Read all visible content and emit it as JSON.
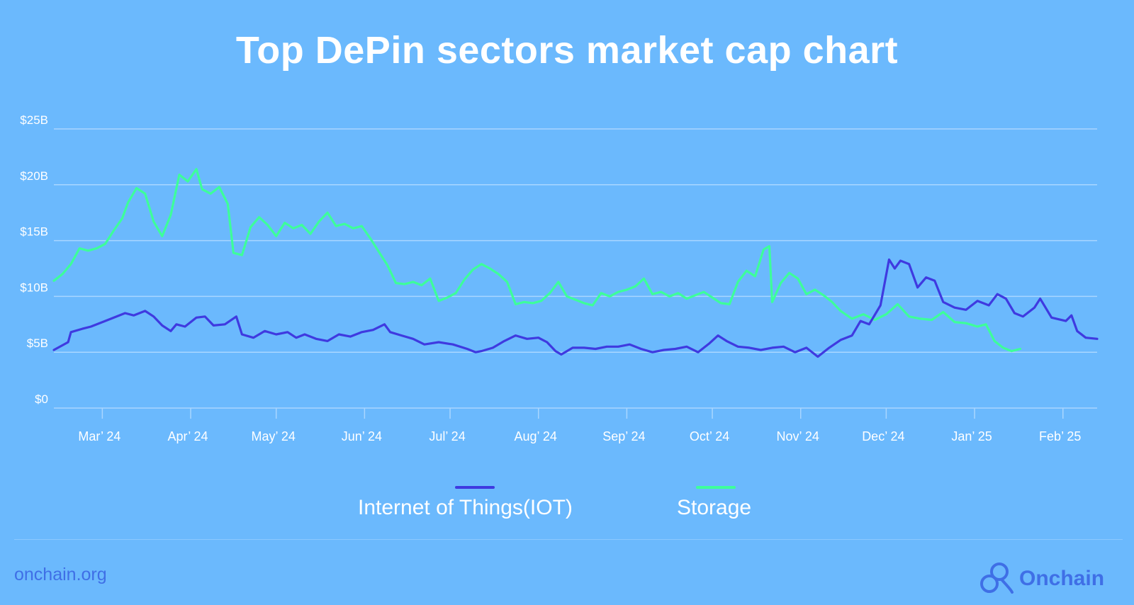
{
  "title": "Top DePin sectors market cap chart",
  "footer": {
    "site": "onchain.org",
    "brand": "Onchain",
    "brand_icon": "onchain-logo-icon"
  },
  "colors": {
    "background": "#6bb9fd",
    "grid": "#a9d6ff",
    "iot": "#3f3ae0",
    "storage": "#3dff9a",
    "text": "#ffffff",
    "footer": "#3f6fe6"
  },
  "chart_data": {
    "type": "line",
    "ylim": [
      0,
      25
    ],
    "yticks": [
      0,
      5,
      10,
      15,
      20,
      25
    ],
    "ytick_labels": [
      "$0",
      "$5B",
      "$10B",
      "$15B",
      "$20B",
      "$25B"
    ],
    "xlim": [
      0,
      366
    ],
    "month_ticks": [
      {
        "x": 17,
        "label": "Mar’ 24"
      },
      {
        "x": 48,
        "label": "Apr’ 24"
      },
      {
        "x": 78,
        "label": "May’ 24"
      },
      {
        "x": 109,
        "label": "Jun’ 24"
      },
      {
        "x": 139,
        "label": "Jul’ 24"
      },
      {
        "x": 170,
        "label": "Aug’ 24"
      },
      {
        "x": 201,
        "label": "Sep’ 24"
      },
      {
        "x": 231,
        "label": "Oct’ 24"
      },
      {
        "x": 262,
        "label": "Nov’ 24"
      },
      {
        "x": 292,
        "label": "Dec’ 24"
      },
      {
        "x": 323,
        "label": "Jan’ 25"
      },
      {
        "x": 354,
        "label": "Feb’ 25"
      }
    ],
    "grid": true,
    "legend_position": "bottom-center",
    "series": [
      {
        "name": "Internet of Things(IOT)",
        "points": [
          [
            0,
            5.2
          ],
          [
            5,
            5.9
          ],
          [
            6,
            6.8
          ],
          [
            10,
            7.1
          ],
          [
            13,
            7.3
          ],
          [
            18,
            7.8
          ],
          [
            22,
            8.2
          ],
          [
            25,
            8.5
          ],
          [
            28,
            8.3
          ],
          [
            32,
            8.7
          ],
          [
            35,
            8.2
          ],
          [
            38,
            7.4
          ],
          [
            41,
            6.9
          ],
          [
            43,
            7.5
          ],
          [
            46,
            7.3
          ],
          [
            50,
            8.1
          ],
          [
            53,
            8.2
          ],
          [
            56,
            7.4
          ],
          [
            60,
            7.5
          ],
          [
            64,
            8.2
          ],
          [
            66,
            6.6
          ],
          [
            70,
            6.3
          ],
          [
            74,
            6.9
          ],
          [
            78,
            6.6
          ],
          [
            82,
            6.8
          ],
          [
            85,
            6.3
          ],
          [
            88,
            6.6
          ],
          [
            92,
            6.2
          ],
          [
            96,
            6.0
          ],
          [
            100,
            6.6
          ],
          [
            104,
            6.4
          ],
          [
            108,
            6.8
          ],
          [
            112,
            7.0
          ],
          [
            116,
            7.5
          ],
          [
            118,
            6.8
          ],
          [
            122,
            6.5
          ],
          [
            126,
            6.2
          ],
          [
            130,
            5.7
          ],
          [
            135,
            5.9
          ],
          [
            140,
            5.7
          ],
          [
            145,
            5.3
          ],
          [
            148,
            5.0
          ],
          [
            150,
            5.1
          ],
          [
            154,
            5.4
          ],
          [
            158,
            6.0
          ],
          [
            162,
            6.5
          ],
          [
            166,
            6.2
          ],
          [
            170,
            6.3
          ],
          [
            173,
            5.9
          ],
          [
            176,
            5.1
          ],
          [
            178,
            4.8
          ],
          [
            182,
            5.4
          ],
          [
            186,
            5.4
          ],
          [
            190,
            5.3
          ],
          [
            194,
            5.5
          ],
          [
            198,
            5.5
          ],
          [
            202,
            5.7
          ],
          [
            206,
            5.3
          ],
          [
            210,
            5.0
          ],
          [
            214,
            5.2
          ],
          [
            218,
            5.3
          ],
          [
            222,
            5.5
          ],
          [
            226,
            5.0
          ],
          [
            230,
            5.8
          ],
          [
            233,
            6.5
          ],
          [
            236,
            6.0
          ],
          [
            240,
            5.5
          ],
          [
            244,
            5.4
          ],
          [
            248,
            5.2
          ],
          [
            252,
            5.4
          ],
          [
            256,
            5.5
          ],
          [
            260,
            5.0
          ],
          [
            264,
            5.4
          ],
          [
            268,
            4.6
          ],
          [
            272,
            5.4
          ],
          [
            276,
            6.1
          ],
          [
            280,
            6.5
          ],
          [
            283,
            7.8
          ],
          [
            286,
            7.5
          ],
          [
            290,
            9.2
          ],
          [
            293,
            13.3
          ],
          [
            295,
            12.5
          ],
          [
            297,
            13.2
          ],
          [
            300,
            12.9
          ],
          [
            303,
            10.8
          ],
          [
            306,
            11.7
          ],
          [
            309,
            11.4
          ],
          [
            312,
            9.5
          ],
          [
            316,
            9.0
          ],
          [
            320,
            8.8
          ],
          [
            324,
            9.6
          ],
          [
            328,
            9.2
          ],
          [
            331,
            10.2
          ],
          [
            334,
            9.8
          ],
          [
            337,
            8.5
          ],
          [
            340,
            8.2
          ],
          [
            344,
            9.0
          ],
          [
            346,
            9.8
          ],
          [
            350,
            8.1
          ],
          [
            355,
            7.8
          ],
          [
            357,
            8.3
          ],
          [
            359,
            6.9
          ],
          [
            362,
            6.3
          ],
          [
            366,
            6.2
          ]
        ]
      },
      {
        "name": "Storage",
        "points": [
          [
            0,
            11.4
          ],
          [
            3,
            12.0
          ],
          [
            6,
            12.9
          ],
          [
            9,
            14.3
          ],
          [
            12,
            14.1
          ],
          [
            15,
            14.3
          ],
          [
            18,
            14.7
          ],
          [
            21,
            15.9
          ],
          [
            24,
            17.0
          ],
          [
            26,
            18.4
          ],
          [
            29,
            19.7
          ],
          [
            32,
            19.2
          ],
          [
            35,
            16.7
          ],
          [
            38,
            15.4
          ],
          [
            41,
            17.3
          ],
          [
            44,
            20.9
          ],
          [
            47,
            20.3
          ],
          [
            50,
            21.4
          ],
          [
            52,
            19.6
          ],
          [
            55,
            19.2
          ],
          [
            58,
            19.8
          ],
          [
            61,
            18.3
          ],
          [
            63,
            13.9
          ],
          [
            66,
            13.7
          ],
          [
            69,
            16.2
          ],
          [
            72,
            17.1
          ],
          [
            75,
            16.4
          ],
          [
            78,
            15.4
          ],
          [
            81,
            16.6
          ],
          [
            84,
            16.1
          ],
          [
            87,
            16.4
          ],
          [
            90,
            15.6
          ],
          [
            93,
            16.7
          ],
          [
            96,
            17.5
          ],
          [
            99,
            16.3
          ],
          [
            102,
            16.5
          ],
          [
            105,
            16.1
          ],
          [
            108,
            16.3
          ],
          [
            111,
            15.2
          ],
          [
            114,
            14.0
          ],
          [
            117,
            12.8
          ],
          [
            120,
            11.2
          ],
          [
            123,
            11.1
          ],
          [
            126,
            11.3
          ],
          [
            129,
            11.0
          ],
          [
            132,
            11.6
          ],
          [
            135,
            9.6
          ],
          [
            138,
            9.9
          ],
          [
            141,
            10.3
          ],
          [
            144,
            11.5
          ],
          [
            147,
            12.4
          ],
          [
            150,
            12.9
          ],
          [
            153,
            12.5
          ],
          [
            156,
            12.0
          ],
          [
            159,
            11.3
          ],
          [
            162,
            9.3
          ],
          [
            165,
            9.5
          ],
          [
            168,
            9.4
          ],
          [
            171,
            9.6
          ],
          [
            174,
            10.3
          ],
          [
            177,
            11.3
          ],
          [
            180,
            10.0
          ],
          [
            183,
            9.7
          ],
          [
            186,
            9.4
          ],
          [
            189,
            9.2
          ],
          [
            192,
            10.3
          ],
          [
            195,
            10.0
          ],
          [
            198,
            10.4
          ],
          [
            201,
            10.6
          ],
          [
            204,
            10.9
          ],
          [
            207,
            11.6
          ],
          [
            210,
            10.2
          ],
          [
            213,
            10.4
          ],
          [
            216,
            10.0
          ],
          [
            219,
            10.3
          ],
          [
            222,
            9.8
          ],
          [
            225,
            10.1
          ],
          [
            228,
            10.4
          ],
          [
            231,
            9.9
          ],
          [
            234,
            9.4
          ],
          [
            237,
            9.3
          ],
          [
            240,
            11.3
          ],
          [
            243,
            12.3
          ],
          [
            246,
            11.8
          ],
          [
            249,
            14.2
          ],
          [
            251,
            14.5
          ],
          [
            252,
            9.5
          ],
          [
            255,
            11.2
          ],
          [
            258,
            12.1
          ],
          [
            261,
            11.6
          ],
          [
            264,
            10.2
          ],
          [
            267,
            10.6
          ],
          [
            270,
            10.1
          ],
          [
            273,
            9.5
          ],
          [
            276,
            8.7
          ],
          [
            280,
            8.0
          ],
          [
            284,
            8.4
          ],
          [
            288,
            7.9
          ],
          [
            292,
            8.4
          ],
          [
            296,
            9.3
          ],
          [
            300,
            8.2
          ],
          [
            304,
            8.0
          ],
          [
            308,
            7.9
          ],
          [
            312,
            8.6
          ],
          [
            316,
            7.7
          ],
          [
            320,
            7.6
          ],
          [
            324,
            7.3
          ],
          [
            327,
            7.5
          ],
          [
            330,
            6.0
          ],
          [
            333,
            5.4
          ],
          [
            336,
            5.1
          ],
          [
            339,
            5.3
          ]
        ]
      }
    ]
  }
}
